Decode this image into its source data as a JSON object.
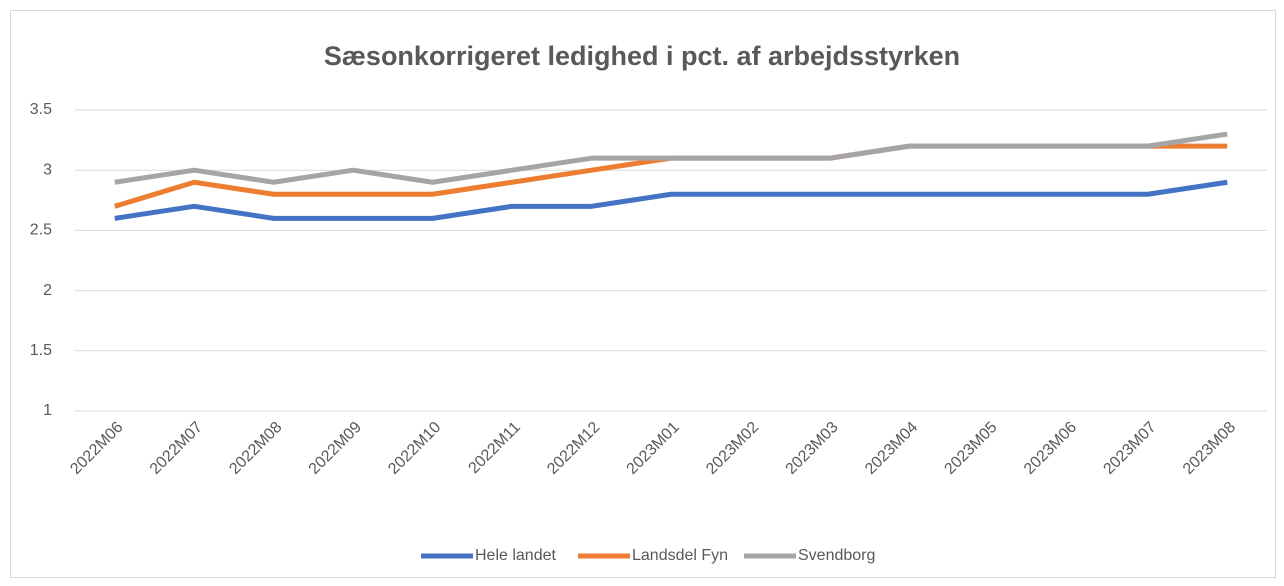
{
  "chart_data": {
    "type": "line",
    "title": "Sæsonkorrigeret ledighed i pct. af arbejdsstyrken",
    "categories": [
      "2022M06",
      "2022M07",
      "2022M08",
      "2022M09",
      "2022M10",
      "2022M11",
      "2022M12",
      "2023M01",
      "2023M02",
      "2023M03",
      "2023M04",
      "2023M05",
      "2023M06",
      "2023M07",
      "2023M08"
    ],
    "series": [
      {
        "name": "Hele landet",
        "color": "#4472c4",
        "values": [
          2.6,
          2.7,
          2.6,
          2.6,
          2.6,
          2.7,
          2.7,
          2.8,
          2.8,
          2.8,
          2.8,
          2.8,
          2.8,
          2.8,
          2.9
        ]
      },
      {
        "name": "Landsdel Fyn",
        "color": "#ed7d31",
        "values": [
          2.7,
          2.9,
          2.8,
          2.8,
          2.8,
          2.9,
          3.0,
          3.1,
          3.1,
          3.1,
          3.2,
          3.2,
          3.2,
          3.2,
          3.2
        ]
      },
      {
        "name": "Svendborg",
        "color": "#a5a5a5",
        "values": [
          2.9,
          3.0,
          2.9,
          3.0,
          2.9,
          3.0,
          3.1,
          3.1,
          3.1,
          3.1,
          3.2,
          3.2,
          3.2,
          3.2,
          3.3
        ]
      }
    ],
    "ylim": [
      1,
      3.5
    ],
    "yticks": [
      1,
      1.5,
      2,
      2.5,
      3,
      3.5
    ],
    "grid": true,
    "legend": "bottom"
  }
}
